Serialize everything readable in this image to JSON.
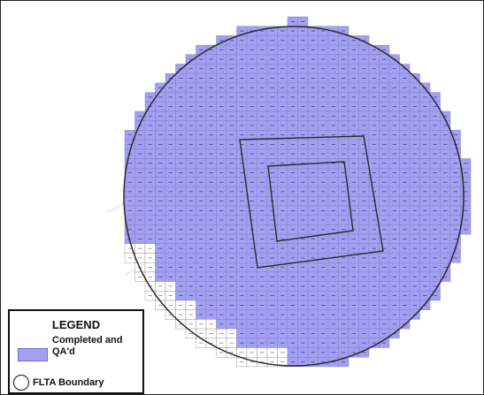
{
  "colors": {
    "completed": "#a39ff2",
    "grid_line": "#7d7bb8",
    "boundary": "#2b2b2b",
    "incomplete": "#ffffff"
  },
  "legend": {
    "title": "LEGEND",
    "completed_label": "Completed and QA'd",
    "boundary_label": "FLTA Boundary"
  }
}
